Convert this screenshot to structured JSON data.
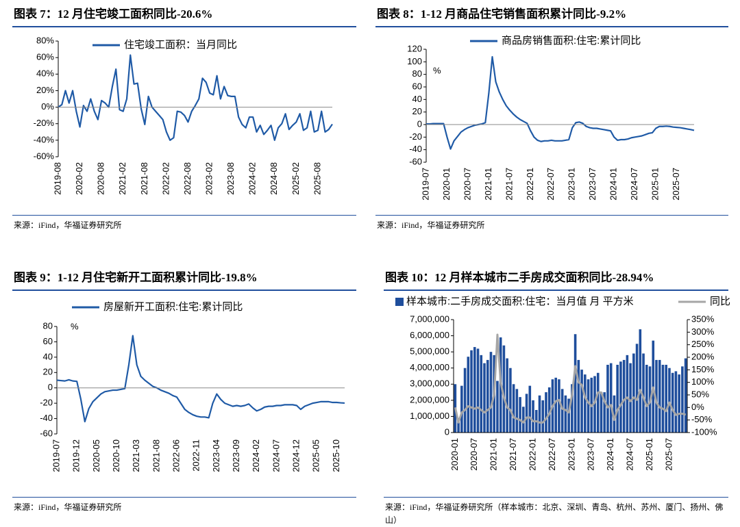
{
  "chart_data": [
    {
      "type": "line",
      "title": "图表 7：12 月住宅竣工面积同比-20.6%",
      "source": "来源：iFind，华福证券研究所",
      "categories": [
        "2019-08",
        null,
        null,
        null,
        null,
        null,
        "2020-02",
        null,
        null,
        null,
        null,
        null,
        "2020-08",
        null,
        null,
        null,
        null,
        null,
        "2021-02",
        null,
        null,
        null,
        null,
        null,
        "2021-08",
        null,
        null,
        null,
        null,
        null,
        "2022-02",
        null,
        null,
        null,
        null,
        null,
        "2022-08",
        null,
        null,
        null,
        null,
        null,
        "2023-02",
        null,
        null,
        null,
        null,
        null,
        "2023-08",
        null,
        null,
        null,
        null,
        null,
        "2024-02",
        null,
        null,
        null,
        null,
        null,
        "2024-08",
        null,
        null,
        null,
        null,
        null,
        "2025-02",
        null,
        null,
        null,
        null,
        null,
        "2025-08",
        null,
        null,
        null,
        null
      ],
      "series": [
        {
          "name": "住宅竣工面积：当月同比",
          "color": "#1f5aa6",
          "values": [
            0,
            3,
            20,
            5,
            20,
            -5,
            -24,
            2,
            -5,
            10,
            -5,
            -15,
            8,
            5,
            0,
            25,
            46,
            -3,
            -5,
            10,
            63,
            28,
            29,
            -2,
            -21,
            13,
            0,
            -5,
            -10,
            -15,
            -30,
            -40,
            -37,
            -5,
            -6,
            -10,
            -18,
            -5,
            2,
            10,
            35,
            30,
            17,
            15,
            38,
            10,
            25,
            14,
            13,
            13,
            -12,
            -21,
            -25,
            -12,
            -12,
            -30,
            -22,
            -33,
            -28,
            -22,
            -40,
            -25,
            -20,
            -8,
            -27,
            -22,
            -18,
            -8,
            -28,
            -25,
            -5,
            -30,
            -28,
            -5,
            -30,
            -27,
            -20.6
          ]
        }
      ],
      "ylim": [
        -60,
        80
      ],
      "yticks": [
        {
          "value": -60,
          "label": "-60%"
        },
        {
          "value": -40,
          "label": "-40%"
        },
        {
          "value": -20,
          "label": "-20%"
        },
        {
          "value": 0,
          "label": "0%"
        },
        {
          "value": 20,
          "label": "20%"
        },
        {
          "value": 40,
          "label": "40%"
        },
        {
          "value": 60,
          "label": "60%"
        },
        {
          "value": 80,
          "label": "80%"
        }
      ]
    },
    {
      "type": "line",
      "title": "图表 8：1-12 月商品住宅销售面积累计同比-9.2%",
      "source": "来源：iFind，华福证券研究所",
      "annotation": "%",
      "categories": [
        "2019-07",
        null,
        null,
        null,
        null,
        null,
        "2020-01",
        null,
        null,
        null,
        null,
        null,
        "2020-07",
        null,
        null,
        null,
        null,
        null,
        "2021-01",
        null,
        null,
        null,
        null,
        null,
        "2021-07",
        null,
        null,
        null,
        null,
        null,
        "2022-01",
        null,
        null,
        null,
        null,
        null,
        "2022-07",
        null,
        null,
        null,
        null,
        null,
        "2023-01",
        null,
        null,
        null,
        null,
        null,
        "2023-07",
        null,
        null,
        null,
        null,
        null,
        "2024-01",
        null,
        null,
        null,
        null,
        null,
        "2024-07",
        null,
        null,
        null,
        null,
        null,
        "2025-01",
        null,
        null,
        null,
        null,
        null,
        "2025-07",
        null,
        null,
        null,
        null,
        null
      ],
      "series": [
        {
          "name": "商品房销售面积:住宅:累计同比",
          "color": "#1f5aa6",
          "values": [
            1,
            1,
            1.5,
            1.5,
            1.5,
            1.5,
            -20,
            -39,
            -26,
            -19,
            -12,
            -8,
            -5,
            -3,
            -1,
            0,
            1,
            3,
            50,
            108,
            68,
            52,
            40,
            30,
            23,
            17,
            12,
            8,
            5,
            2,
            -10,
            -20,
            -25,
            -27,
            -26,
            -26,
            -25,
            -26,
            -26,
            -26,
            -25,
            -24,
            -5,
            3,
            4,
            2,
            -3,
            -5,
            -6,
            -6,
            -7,
            -8,
            -9,
            -10,
            -20,
            -25,
            -24,
            -24,
            -23,
            -21,
            -20,
            -19,
            -18,
            -16,
            -14,
            -13,
            -6,
            -3,
            -3,
            -2.5,
            -3,
            -4,
            -4.5,
            -5,
            -6,
            -7,
            -8,
            -9.2
          ]
        }
      ],
      "ylim": [
        -60,
        120
      ],
      "yticks": [
        -60,
        -40,
        -20,
        0,
        20,
        40,
        60,
        80,
        100,
        120
      ]
    },
    {
      "type": "line",
      "title": "图表 9：1-12 月住宅新开工面积累计同比-19.8%",
      "source": "来源：iFind，华福证券研究所",
      "annotation": "%",
      "categories": [
        "2019-07",
        null,
        null,
        null,
        null,
        "2019-12",
        null,
        null,
        null,
        null,
        "2020-05",
        null,
        null,
        null,
        null,
        "2020-10",
        null,
        null,
        null,
        null,
        "2021-03",
        null,
        null,
        null,
        null,
        "2021-08",
        null,
        null,
        null,
        null,
        "2022-06",
        null,
        null,
        null,
        null,
        "2022-11",
        null,
        null,
        null,
        null,
        "2023-04",
        null,
        null,
        null,
        null,
        "2023-09",
        null,
        null,
        null,
        null,
        "2024-02",
        null,
        null,
        null,
        null,
        "2024-07",
        null,
        null,
        null,
        null,
        "2024-12",
        null,
        null,
        null,
        null,
        "2025-05",
        null,
        null,
        null,
        null,
        "2025-10",
        null,
        null
      ],
      "series": [
        {
          "name": "房屋新开工面积:住宅:累计同比",
          "color": "#1f5aa6",
          "values": [
            10,
            9.5,
            9,
            10.5,
            9,
            8.5,
            -15,
            -44,
            -27,
            -18,
            -13,
            -8,
            -5,
            -4,
            -3,
            -3,
            -2,
            -1,
            30,
            68,
            30,
            15,
            10,
            6,
            2,
            0,
            -3,
            -5,
            -7,
            -10,
            -12,
            -20,
            -28,
            -32,
            -35,
            -37,
            -38,
            -38,
            -39,
            -20,
            -8,
            -15,
            -20,
            -22,
            -24,
            -23,
            -24,
            -23,
            -21,
            -26,
            -30,
            -28,
            -25,
            -24,
            -24,
            -23,
            -23,
            -22,
            -22,
            -22,
            -23,
            -28,
            -24,
            -22,
            -20,
            -19,
            -18,
            -18,
            -18,
            -19,
            -19,
            -19.5,
            -19.8
          ]
        }
      ],
      "ylim": [
        -60,
        80
      ],
      "yticks": [
        -60,
        -40,
        -20,
        0,
        20,
        40,
        60,
        80
      ]
    },
    {
      "type": "combo",
      "title": "图表 10：12 月样本城市二手房成交面积同比-28.94%",
      "source": "来源：iFind，华福证券研究所（样本城市：北京、深圳、青岛、杭州、苏州、厦门、扬州、佛山）",
      "categories": [
        "2020-01",
        null,
        null,
        null,
        null,
        null,
        "2020-07",
        null,
        null,
        null,
        null,
        null,
        "2021-01",
        null,
        null,
        null,
        null,
        null,
        "2021-07",
        null,
        null,
        null,
        null,
        null,
        "2022-01",
        null,
        null,
        null,
        null,
        null,
        "2022-07",
        null,
        null,
        null,
        null,
        null,
        "2023-01",
        null,
        null,
        null,
        null,
        null,
        "2023-07",
        null,
        null,
        null,
        null,
        null,
        "2024-01",
        null,
        null,
        null,
        null,
        null,
        "2024-07",
        null,
        null,
        null,
        null,
        null,
        "2025-01",
        null,
        null,
        null,
        null,
        null,
        "2025-07",
        null,
        null,
        null,
        null,
        null
      ],
      "series": [
        {
          "name": "样本城市:二手房成交面积:住宅：当月值 月 平方米",
          "color": "#1f4e9c",
          "type": "bar",
          "values": [
            3000000,
            900000,
            2900000,
            4000000,
            4700000,
            5100000,
            5300000,
            5200000,
            4800000,
            4300000,
            4500000,
            5000000,
            4800000,
            3200000,
            5900000,
            5400000,
            4600000,
            4000000,
            3000000,
            2700000,
            2200000,
            1600000,
            2400000,
            2900000,
            2000000,
            1400000,
            2300000,
            2000000,
            2500000,
            2800000,
            3300000,
            3400000,
            3300000,
            2700000,
            2300000,
            2100000,
            3000000,
            6100000,
            4500000,
            3900000,
            3600000,
            3300000,
            3400000,
            3500000,
            3700000,
            2500000,
            2500000,
            4200000,
            4300000,
            2300000,
            4200000,
            4400000,
            4500000,
            4800000,
            4300000,
            4900000,
            5500000,
            6400000,
            4900000,
            4200000,
            4100000,
            5700000,
            4500000,
            4500000,
            4200000,
            4200000,
            4000000,
            3700000,
            3800000,
            3600000,
            4100000,
            4600000
          ]
        },
        {
          "name": "同比",
          "color": "#a6a6a6",
          "axis": "y2",
          "values": [
            0,
            -60,
            -20,
            -10,
            5,
            0,
            -5,
            0,
            -10,
            -20,
            -10,
            0,
            50,
            290,
            100,
            40,
            0,
            -10,
            -40,
            -45,
            -50,
            -60,
            -40,
            -40,
            -55,
            -55,
            -60,
            -60,
            -45,
            -25,
            5,
            25,
            30,
            -5,
            -10,
            -20,
            50,
            165,
            100,
            90,
            40,
            20,
            5,
            20,
            60,
            60,
            25,
            0,
            10,
            -50,
            -10,
            10,
            30,
            40,
            25,
            40,
            30,
            70,
            40,
            5,
            20,
            80,
            20,
            0,
            -5,
            -15,
            20,
            -10,
            -30,
            -25,
            -25,
            -28.94
          ]
        }
      ],
      "ylim": [
        0,
        7000000
      ],
      "yticks": [
        0,
        {
          "value": 1000000,
          "label": "1,000,000"
        },
        {
          "value": 2000000,
          "label": "2,000,000"
        },
        {
          "value": 3000000,
          "label": "3,000,000"
        },
        {
          "value": 4000000,
          "label": "4,000,000"
        },
        {
          "value": 5000000,
          "label": "5,000,000"
        },
        {
          "value": 6000000,
          "label": "6,000,000"
        },
        {
          "value": 7000000,
          "label": "7,000,000"
        }
      ],
      "y2lim": [
        -100,
        350
      ],
      "y2ticks": [
        {
          "value": -100,
          "label": "-100%"
        },
        {
          "value": -50,
          "label": "-50%"
        },
        {
          "value": 0,
          "label": "0%"
        },
        {
          "value": 50,
          "label": "50%"
        },
        {
          "value": 100,
          "label": "100%"
        },
        {
          "value": 150,
          "label": "150%"
        },
        {
          "value": 200,
          "label": "200%"
        },
        {
          "value": 250,
          "label": "250%"
        },
        {
          "value": 300,
          "label": "300%"
        },
        {
          "value": 350,
          "label": "350%"
        }
      ]
    }
  ]
}
